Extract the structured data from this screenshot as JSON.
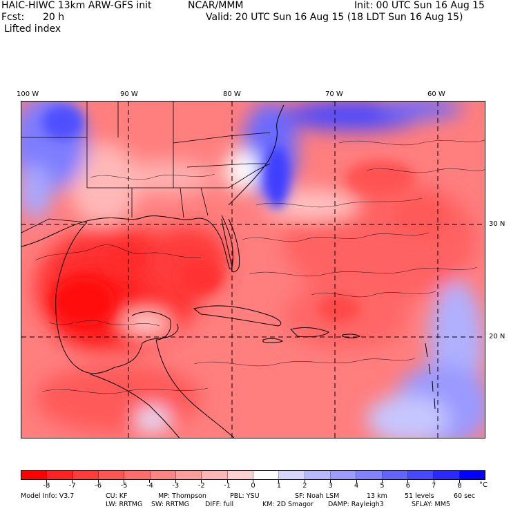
{
  "header": {
    "model": "HAIC-HIWC 13km ARW-GFS init",
    "org": "NCAR/MMM",
    "init": "Init: 00 UTC Sun 16 Aug 15",
    "fcst_label": "Fcst:",
    "fcst_value": "20 h",
    "valid": "Valid: 20 UTC Sun 16 Aug 15 (18 LDT Sun 16 Aug 15)",
    "field": "Lifted index"
  },
  "map": {
    "lon_labels": [
      "100 W",
      "90 W",
      "80 W",
      "70 W",
      "60 W"
    ],
    "lat_labels": [
      "30 N",
      "20 N"
    ]
  },
  "colorbar": {
    "ticks": [
      "-8",
      "-7",
      "-6",
      "-5",
      "-4",
      "-3",
      "-2",
      "-1",
      "0",
      "1",
      "2",
      "3",
      "4",
      "5",
      "6",
      "7",
      "8"
    ],
    "unit": "°C",
    "colors": [
      "#ff0000",
      "#ff2222",
      "#ff3c3c",
      "#ff5454",
      "#ff6c6c",
      "#ff8585",
      "#ff9d9d",
      "#ffb6b6",
      "#ffd2d2",
      "#ffffff",
      "#d6d6ff",
      "#b8b8ff",
      "#9d9dff",
      "#8282ff",
      "#6464ff",
      "#4848ff",
      "#2a2aff",
      "#0000ff"
    ]
  },
  "footer": {
    "line1": [
      "Model Info: V3.7",
      "CU: KF",
      "MP: Thompson",
      "PBL: YSU",
      "SF: Noah LSM",
      "13 km",
      "51 levels",
      "60 sec"
    ],
    "line2": [
      "LW: RRTMG",
      "SW: RRTMG",
      "DIFF: full",
      "KM: 2D Smagor",
      "DAMP: Rayleigh3",
      "SFLAY: MM5"
    ]
  }
}
